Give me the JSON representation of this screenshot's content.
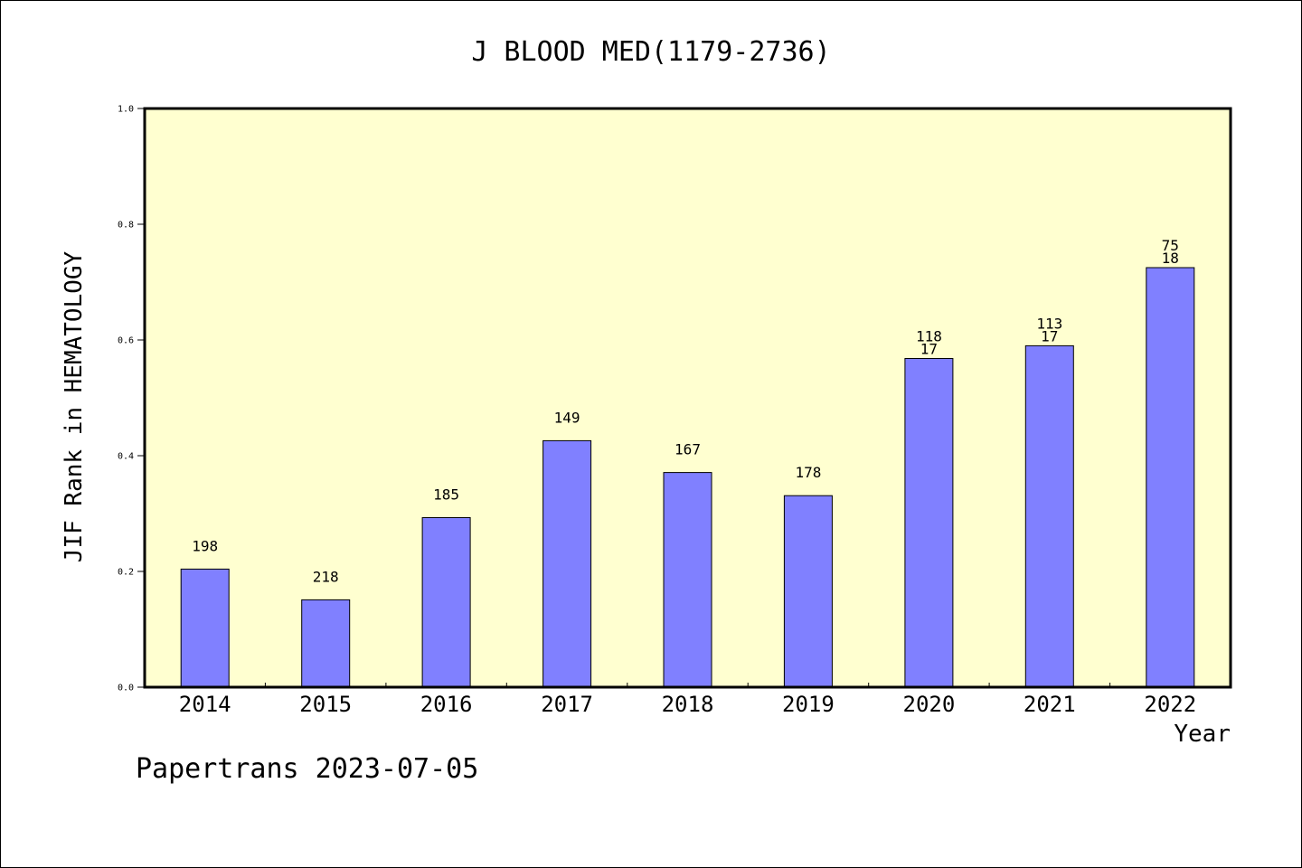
{
  "chart_data": {
    "type": "bar",
    "title": "J BLOOD MED(1179-2736)",
    "xlabel": "Year",
    "ylabel": "JIF Rank in HEMATOLOGY",
    "ylim": [
      0,
      1.0
    ],
    "yticks": [
      "0.0",
      "0.2",
      "0.4",
      "0.6",
      "0.8",
      "1.0"
    ],
    "grid": false,
    "categories": [
      "2014",
      "2015",
      "2016",
      "2017",
      "2018",
      "2019",
      "2020",
      "2021",
      "2022"
    ],
    "values": [
      0.204,
      0.151,
      0.293,
      0.426,
      0.371,
      0.331,
      0.568,
      0.59,
      0.725
    ],
    "bar_labels": [
      [
        "198"
      ],
      [
        "218"
      ],
      [
        "185"
      ],
      [
        "149"
      ],
      [
        "167"
      ],
      [
        "178"
      ],
      [
        "118",
        "17"
      ],
      [
        "113",
        "17"
      ],
      [
        "75",
        "18"
      ]
    ],
    "colors": {
      "bar": "#8080ff",
      "plot_background": "#ffffd0",
      "axis": "#000000"
    }
  },
  "footer": {
    "note": "Papertrans 2023-07-05"
  }
}
